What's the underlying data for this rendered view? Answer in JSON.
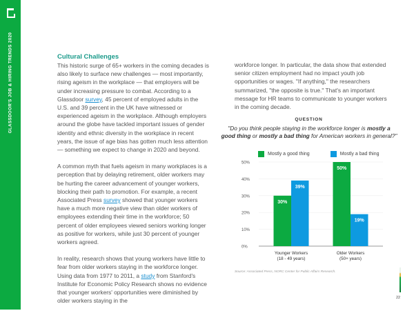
{
  "sidebar": {
    "title": "GLASSDOOR'S JOB & HIRING TRENDS 2020",
    "brand_color": "#0caa41",
    "logo_icon": "glassdoor-logo"
  },
  "left": {
    "heading": "Cultural Challenges",
    "p1_a": "This historic surge of 65+ workers in the coming decades is also likely to surface new challenges — most importantly, rising ageism in the workplace — that employers will be under increasing pressure to combat. According to a Glassdoor ",
    "p1_link": "survey",
    "p1_b": ", 45 percent of employed adults in the U.S. and 39 percent in the UK have witnessed or experienced ageism in the workplace. Although employers around the globe have tackled important issues of gender identity and ethnic diversity in the workplace in recent years, the issue of age bias has gotten much less attention — something we expect to change in 2020 and beyond.",
    "p2_a": "A common myth that fuels ageism in many workplaces is a perception that by delaying retirement, older workers may be hurting the career advancement of younger workers, blocking their path to promotion. For example, a recent Associated Press ",
    "p2_link": "survey",
    "p2_b": " showed that younger workers have a much more negative view than older workers of employees extending their time in the workforce; 50 percent of older employees viewed seniors working longer as positive for workers, while just 30 percent of younger workers agreed.",
    "p3_a": "In reality, research shows that young workers have little to fear from older workers staying in the workforce longer. Using data from 1977 to 2011, a ",
    "p3_link": "study",
    "p3_b": " from Stanford's Institute for Economic Policy Research shows no evidence that younger workers' opportunities were diminished by older workers staying in the"
  },
  "right": {
    "p1": "workforce longer. In particular, the data show that extended senior citizen employment had no impact youth job opportunities or wages. \"If anything,\" the researchers summarized, \"the opposite is true.\" That's an important message for HR teams to communicate to younger workers in the coming decade."
  },
  "question": {
    "label": "QUESTION",
    "t1": "\"Do you think people staying in the workforce longer is ",
    "b1": "mostly a good thing",
    "t2": " or ",
    "b2": "mostly a bad thing",
    "t3": " for American workers in general?\""
  },
  "chart_data": {
    "type": "bar",
    "categories": [
      "Younger Workers\n(18 - 49 years)",
      "Older Workers\n(50+ years)"
    ],
    "category_lines": [
      [
        "Younger Workers",
        "(18 - 49 years)"
      ],
      [
        "Older Workers",
        "(50+ years)"
      ]
    ],
    "series": [
      {
        "name": "Mostly a good thing",
        "values": [
          30,
          50
        ],
        "color": "#0caa41"
      },
      {
        "name": "Mostly a bad thing",
        "values": [
          39,
          19
        ],
        "color": "#0e9ae0"
      }
    ],
    "ylim": [
      0,
      50
    ],
    "yticks": [
      "0%",
      "10%",
      "20%",
      "30%",
      "40%",
      "50%"
    ],
    "data_labels": [
      [
        "30%",
        "50%"
      ],
      [
        "39%",
        "19%"
      ]
    ],
    "grid": true,
    "legend": "top"
  },
  "source": "Source: Associated Press, NORC Center for Public Affairs Research.",
  "page_number": "22"
}
